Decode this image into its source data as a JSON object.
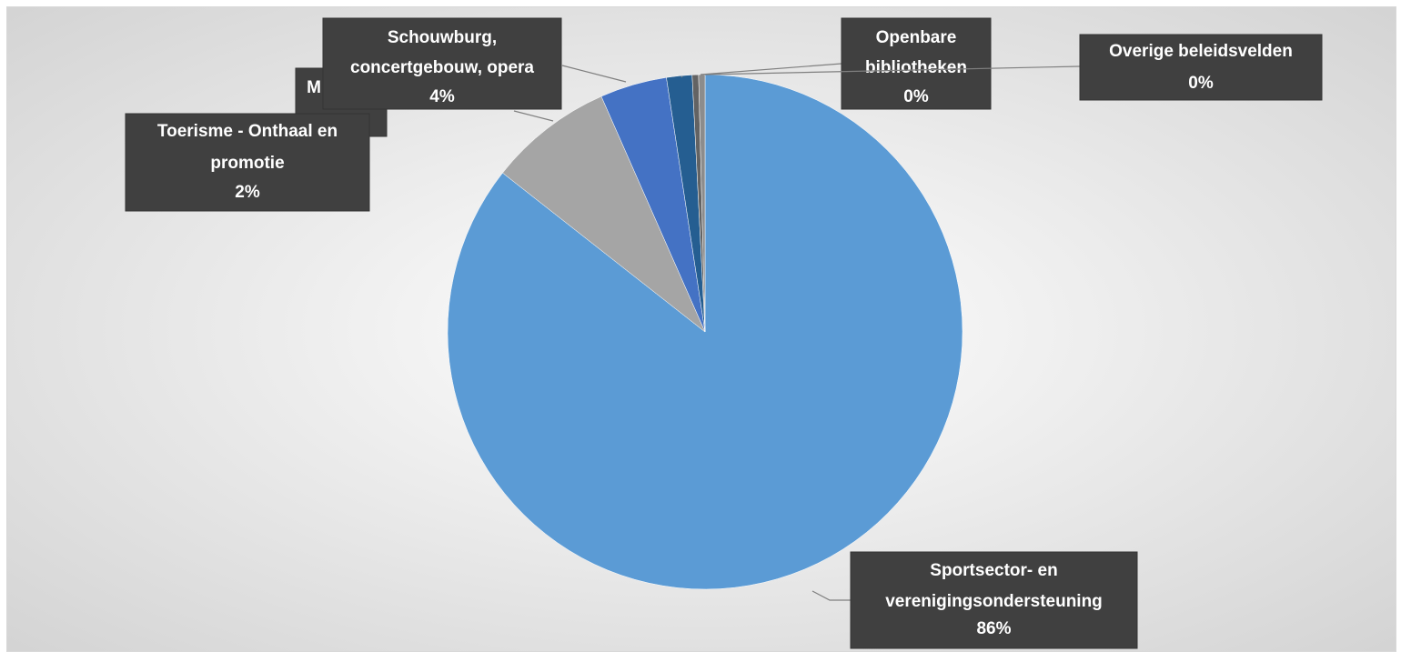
{
  "chart_data": {
    "type": "pie",
    "categories": [
      "Sportsector- en verenigingsondersteuning",
      "M",
      "Schouwburg, concertgebouw, opera",
      "Toerisme - Onthaal en promotie",
      "Openbare bibliotheken",
      "Overige beleidsvelden"
    ],
    "values": [
      85.6,
      7.8,
      4.2,
      1.6,
      0.4,
      0.4
    ],
    "value_labels": [
      "86%",
      null,
      "4%",
      "2%",
      "0%",
      "0%"
    ],
    "colors": [
      "#5b9bd5",
      "#a5a5a5",
      "#4472c4",
      "#255e91",
      "#636363",
      "#8c8c8c"
    ]
  }
}
